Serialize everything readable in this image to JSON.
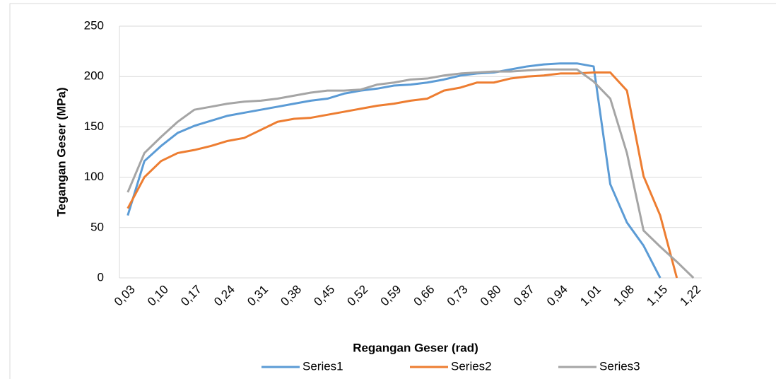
{
  "chart_data": {
    "type": "line",
    "x_label": "Regangan Geser (rad)",
    "y_label": "Tegangan Geser (MPa)",
    "categories": [
      "0,03",
      null,
      "0,10",
      null,
      "0,17",
      null,
      "0,24",
      null,
      "0,31",
      null,
      "0,38",
      null,
      "0,45",
      null,
      "0,52",
      null,
      "0,59",
      null,
      "0,66",
      null,
      "0,73",
      null,
      "0,80",
      null,
      "0,87",
      null,
      "0,94",
      null,
      "1,01",
      null,
      "1,08",
      null,
      "1,15",
      null,
      "1,22"
    ],
    "series": [
      {
        "name": "Series1",
        "color": "#5b9bd5",
        "values": [
          62,
          116,
          131,
          144,
          151,
          156,
          161,
          164,
          167,
          170,
          173,
          176,
          178,
          183,
          186,
          188,
          191,
          192,
          194,
          197,
          201,
          203,
          204,
          207,
          210,
          212,
          213,
          213,
          210,
          93,
          55,
          32,
          0,
          null,
          null
        ]
      },
      {
        "name": "Series2",
        "color": "#ed7d31",
        "values": [
          69,
          100,
          116,
          124,
          127,
          131,
          136,
          139,
          147,
          155,
          158,
          159,
          162,
          165,
          168,
          171,
          173,
          176,
          178,
          186,
          189,
          194,
          194,
          198,
          200,
          201,
          203,
          203,
          204,
          204,
          186,
          101,
          62,
          0,
          null
        ]
      },
      {
        "name": "Series3",
        "color": "#a5a5a5",
        "values": [
          85,
          124,
          140,
          155,
          167,
          170,
          173,
          175,
          176,
          178,
          181,
          184,
          186,
          186,
          187,
          192,
          194,
          197,
          198,
          201,
          203,
          204,
          205,
          205,
          206,
          207,
          207,
          207,
          195,
          178,
          124,
          47,
          31,
          16,
          0
        ]
      }
    ],
    "ylim": [
      0,
      250
    ],
    "yticks": [
      0,
      50,
      100,
      150,
      200,
      250
    ],
    "grid": true,
    "legend": "bottom"
  }
}
